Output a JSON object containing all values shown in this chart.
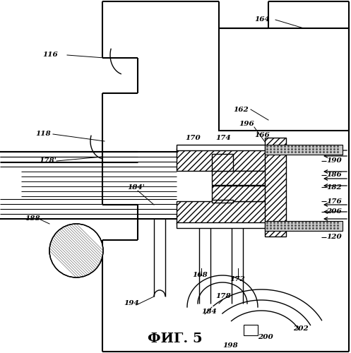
{
  "title": "ФИГ. 5",
  "bg_color": "#ffffff",
  "line_color": "#000000"
}
